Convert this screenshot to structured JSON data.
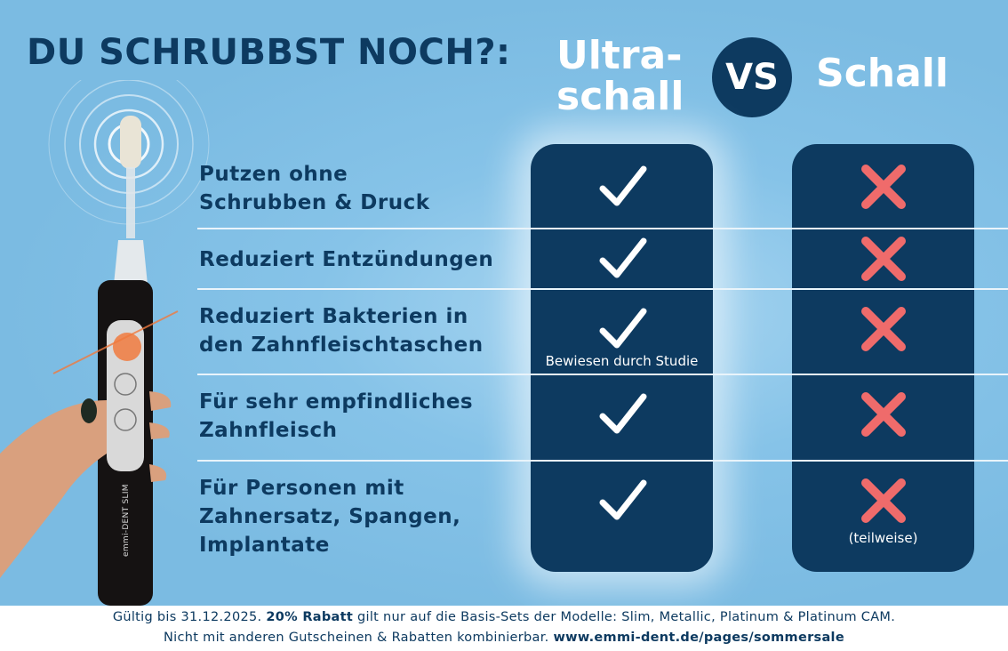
{
  "header": {
    "title": "DU SCHRUBBST NOCH?:",
    "left_option_line1": "Ultra-",
    "left_option_line2": "schall",
    "vs": "VS",
    "right_option": "Schall"
  },
  "rows": [
    {
      "label_lines": [
        "Putzen ohne",
        "Schrubben & Druck"
      ],
      "ultraschall": "check",
      "schall": "cross"
    },
    {
      "label_lines": [
        "Reduziert Entzündungen"
      ],
      "ultraschall": "check",
      "schall": "cross"
    },
    {
      "label_lines": [
        "Reduziert Bakterien in",
        "den Zahnfleischtaschen"
      ],
      "ultraschall": "check",
      "ultraschall_note": "Bewiesen durch Studie",
      "schall": "cross"
    },
    {
      "label_lines": [
        "Für sehr empfindliches",
        "Zahnfleisch"
      ],
      "ultraschall": "check",
      "schall": "cross"
    },
    {
      "label_lines": [
        "Für Personen mit",
        "Zahnersatz, Spangen,",
        "Implantate"
      ],
      "ultraschall": "check",
      "schall": "cross",
      "schall_note": "(teilweise)"
    }
  ],
  "product": {
    "brand_text": "emmi-DENT SLIM"
  },
  "footer": {
    "line1_a": "Gültig bis 31.12.2025. ",
    "line1_bold": "20% Rabatt",
    "line1_b": " gilt nur auf die Basis-Sets der Modelle:  Slim, Metallic, Platinum & Platinum CAM.",
    "line2_a": "Nicht mit anderen Gutscheinen & Rabatten kombinierbar. ",
    "line2_link": "www.emmi-dent.de/pages/sommersale"
  },
  "colors": {
    "navy": "#0d3a60",
    "background": "#7bbbe2",
    "cross": "#ef6b6b",
    "check": "#ffffff"
  }
}
